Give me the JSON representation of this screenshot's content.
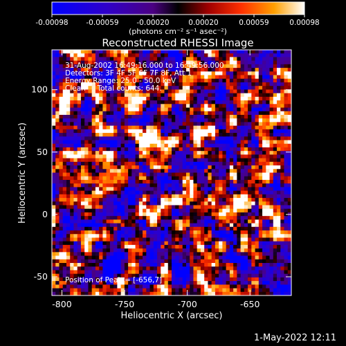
{
  "chart_data": {
    "type": "heatmap",
    "title": "Reconstructed RHESSI Image",
    "xlabel": "Heliocentric X (arcsec)",
    "ylabel": "Heliocentric Y (arcsec)",
    "xlim": [
      -808,
      -617
    ],
    "ylim": [
      -65,
      132
    ],
    "xticks": [
      -800,
      -750,
      -700,
      -650
    ],
    "yticks": [
      -50,
      0,
      50,
      100
    ],
    "colorbar": {
      "ticks": [
        "-0.00098",
        "-0.00059",
        "-0.00020",
        "0.00020",
        "0.00059",
        "0.00098"
      ],
      "range": [
        -0.00098,
        0.00098
      ],
      "unit_label": "(photons cm⁻² s⁻¹ asec⁻²)"
    },
    "annotations": [
      "31-Aug-2002 16:49:16.000 to 16:49:56.000",
      "Detectors: 3F 4F 5F 6F 7F 8F, Att 1",
      "Energy Range: 25.0 - 50.0 keV",
      "Clean     Total counts: 644."
    ],
    "peak": {
      "label": "Position of Peak = [-656,7]",
      "x": -656,
      "y": 7
    },
    "grid": false,
    "legend": "none"
  },
  "footer": {
    "timestamp": "1-May-2022 12:11"
  },
  "colors": {
    "background": "#000000",
    "text": "#ffffff",
    "colormap": [
      "#0000ff",
      "#5a00a0",
      "#000000",
      "#a00000",
      "#ff3000",
      "#ffa000",
      "#ffffff"
    ]
  }
}
